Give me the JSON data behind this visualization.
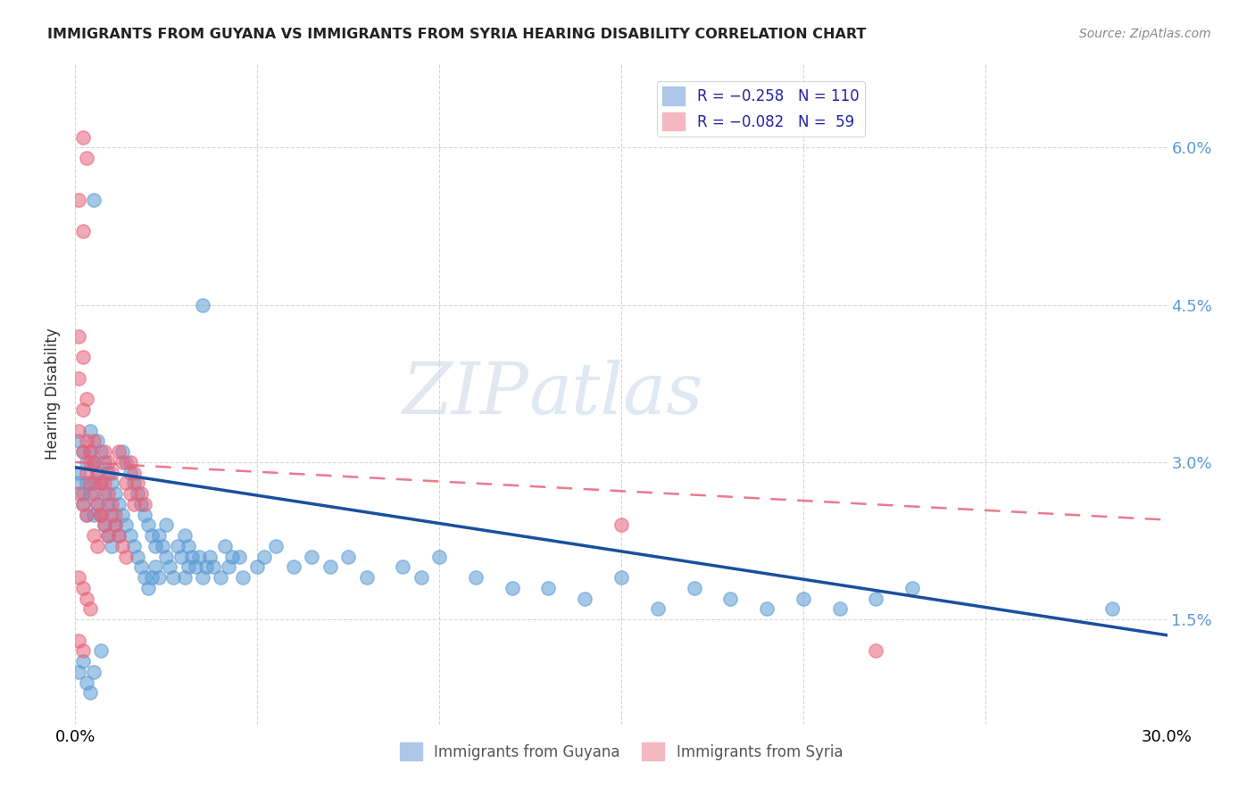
{
  "title": "IMMIGRANTS FROM GUYANA VS IMMIGRANTS FROM SYRIA HEARING DISABILITY CORRELATION CHART",
  "source": "Source: ZipAtlas.com",
  "ylabel": "Hearing Disability",
  "y_ticks": [
    0.015,
    0.03,
    0.045,
    0.06
  ],
  "y_tick_labels": [
    "1.5%",
    "3.0%",
    "4.5%",
    "6.0%"
  ],
  "x_min": 0.0,
  "x_max": 0.3,
  "y_min": 0.005,
  "y_max": 0.068,
  "watermark": "ZIPatlas",
  "guyana_color": "#5b9bd5",
  "guyana_edge": "#4a86c0",
  "syria_color": "#e8637a",
  "syria_edge": "#d44d65",
  "guyana_line_color": "#1a4f9e",
  "syria_line_color": "#e8637a",
  "guyana_line_y0": 0.0295,
  "guyana_line_y1": 0.0135,
  "syria_line_y0": 0.03,
  "syria_line_y1": 0.0245,
  "guyana_points": [
    [
      0.001,
      0.032
    ],
    [
      0.001,
      0.029
    ],
    [
      0.001,
      0.028
    ],
    [
      0.002,
      0.031
    ],
    [
      0.002,
      0.027
    ],
    [
      0.002,
      0.026
    ],
    [
      0.003,
      0.03
    ],
    [
      0.003,
      0.028
    ],
    [
      0.003,
      0.025
    ],
    [
      0.004,
      0.033
    ],
    [
      0.004,
      0.031
    ],
    [
      0.004,
      0.027
    ],
    [
      0.005,
      0.03
    ],
    [
      0.005,
      0.028
    ],
    [
      0.005,
      0.025
    ],
    [
      0.006,
      0.032
    ],
    [
      0.006,
      0.029
    ],
    [
      0.006,
      0.026
    ],
    [
      0.007,
      0.031
    ],
    [
      0.007,
      0.028
    ],
    [
      0.007,
      0.025
    ],
    [
      0.008,
      0.03
    ],
    [
      0.008,
      0.027
    ],
    [
      0.008,
      0.024
    ],
    [
      0.009,
      0.029
    ],
    [
      0.009,
      0.026
    ],
    [
      0.009,
      0.023
    ],
    [
      0.01,
      0.028
    ],
    [
      0.01,
      0.025
    ],
    [
      0.01,
      0.022
    ],
    [
      0.011,
      0.027
    ],
    [
      0.011,
      0.024
    ],
    [
      0.012,
      0.026
    ],
    [
      0.012,
      0.023
    ],
    [
      0.013,
      0.031
    ],
    [
      0.013,
      0.025
    ],
    [
      0.014,
      0.03
    ],
    [
      0.014,
      0.024
    ],
    [
      0.015,
      0.029
    ],
    [
      0.015,
      0.023
    ],
    [
      0.016,
      0.028
    ],
    [
      0.016,
      0.022
    ],
    [
      0.017,
      0.027
    ],
    [
      0.017,
      0.021
    ],
    [
      0.018,
      0.026
    ],
    [
      0.018,
      0.02
    ],
    [
      0.019,
      0.025
    ],
    [
      0.019,
      0.019
    ],
    [
      0.02,
      0.024
    ],
    [
      0.02,
      0.018
    ],
    [
      0.021,
      0.023
    ],
    [
      0.021,
      0.019
    ],
    [
      0.022,
      0.022
    ],
    [
      0.022,
      0.02
    ],
    [
      0.023,
      0.023
    ],
    [
      0.023,
      0.019
    ],
    [
      0.024,
      0.022
    ],
    [
      0.025,
      0.021
    ],
    [
      0.025,
      0.024
    ],
    [
      0.026,
      0.02
    ],
    [
      0.027,
      0.019
    ],
    [
      0.028,
      0.022
    ],
    [
      0.029,
      0.021
    ],
    [
      0.03,
      0.023
    ],
    [
      0.03,
      0.019
    ],
    [
      0.031,
      0.022
    ],
    [
      0.031,
      0.02
    ],
    [
      0.032,
      0.021
    ],
    [
      0.033,
      0.02
    ],
    [
      0.034,
      0.021
    ],
    [
      0.035,
      0.019
    ],
    [
      0.036,
      0.02
    ],
    [
      0.037,
      0.021
    ],
    [
      0.038,
      0.02
    ],
    [
      0.04,
      0.019
    ],
    [
      0.041,
      0.022
    ],
    [
      0.042,
      0.02
    ],
    [
      0.043,
      0.021
    ],
    [
      0.045,
      0.021
    ],
    [
      0.046,
      0.019
    ],
    [
      0.05,
      0.02
    ],
    [
      0.052,
      0.021
    ],
    [
      0.055,
      0.022
    ],
    [
      0.06,
      0.02
    ],
    [
      0.065,
      0.021
    ],
    [
      0.07,
      0.02
    ],
    [
      0.075,
      0.021
    ],
    [
      0.08,
      0.019
    ],
    [
      0.09,
      0.02
    ],
    [
      0.095,
      0.019
    ],
    [
      0.1,
      0.021
    ],
    [
      0.11,
      0.019
    ],
    [
      0.12,
      0.018
    ],
    [
      0.13,
      0.018
    ],
    [
      0.14,
      0.017
    ],
    [
      0.15,
      0.019
    ],
    [
      0.16,
      0.016
    ],
    [
      0.17,
      0.018
    ],
    [
      0.18,
      0.017
    ],
    [
      0.19,
      0.016
    ],
    [
      0.2,
      0.017
    ],
    [
      0.21,
      0.016
    ],
    [
      0.22,
      0.017
    ],
    [
      0.23,
      0.018
    ],
    [
      0.005,
      0.055
    ],
    [
      0.035,
      0.045
    ],
    [
      0.285,
      0.016
    ],
    [
      0.001,
      0.01
    ],
    [
      0.002,
      0.011
    ],
    [
      0.003,
      0.009
    ],
    [
      0.004,
      0.008
    ],
    [
      0.005,
      0.01
    ],
    [
      0.007,
      0.012
    ]
  ],
  "syria_points": [
    [
      0.002,
      0.061
    ],
    [
      0.003,
      0.059
    ],
    [
      0.001,
      0.055
    ],
    [
      0.002,
      0.052
    ],
    [
      0.001,
      0.042
    ],
    [
      0.002,
      0.04
    ],
    [
      0.001,
      0.038
    ],
    [
      0.003,
      0.036
    ],
    [
      0.002,
      0.035
    ],
    [
      0.001,
      0.033
    ],
    [
      0.003,
      0.032
    ],
    [
      0.002,
      0.031
    ],
    [
      0.004,
      0.03
    ],
    [
      0.003,
      0.029
    ],
    [
      0.005,
      0.032
    ],
    [
      0.004,
      0.028
    ],
    [
      0.001,
      0.027
    ],
    [
      0.002,
      0.026
    ],
    [
      0.003,
      0.025
    ],
    [
      0.004,
      0.031
    ],
    [
      0.005,
      0.03
    ],
    [
      0.006,
      0.029
    ],
    [
      0.007,
      0.028
    ],
    [
      0.005,
      0.027
    ],
    [
      0.006,
      0.026
    ],
    [
      0.007,
      0.025
    ],
    [
      0.008,
      0.031
    ],
    [
      0.009,
      0.03
    ],
    [
      0.01,
      0.029
    ],
    [
      0.008,
      0.028
    ],
    [
      0.009,
      0.027
    ],
    [
      0.01,
      0.026
    ],
    [
      0.011,
      0.025
    ],
    [
      0.012,
      0.031
    ],
    [
      0.013,
      0.03
    ],
    [
      0.014,
      0.028
    ],
    [
      0.015,
      0.027
    ],
    [
      0.016,
      0.026
    ],
    [
      0.011,
      0.024
    ],
    [
      0.012,
      0.023
    ],
    [
      0.013,
      0.022
    ],
    [
      0.014,
      0.021
    ],
    [
      0.015,
      0.03
    ],
    [
      0.016,
      0.029
    ],
    [
      0.017,
      0.028
    ],
    [
      0.018,
      0.027
    ],
    [
      0.019,
      0.026
    ],
    [
      0.001,
      0.019
    ],
    [
      0.002,
      0.018
    ],
    [
      0.003,
      0.017
    ],
    [
      0.004,
      0.016
    ],
    [
      0.005,
      0.023
    ],
    [
      0.006,
      0.022
    ],
    [
      0.007,
      0.025
    ],
    [
      0.008,
      0.024
    ],
    [
      0.009,
      0.023
    ],
    [
      0.001,
      0.013
    ],
    [
      0.002,
      0.012
    ],
    [
      0.15,
      0.024
    ],
    [
      0.22,
      0.012
    ]
  ]
}
